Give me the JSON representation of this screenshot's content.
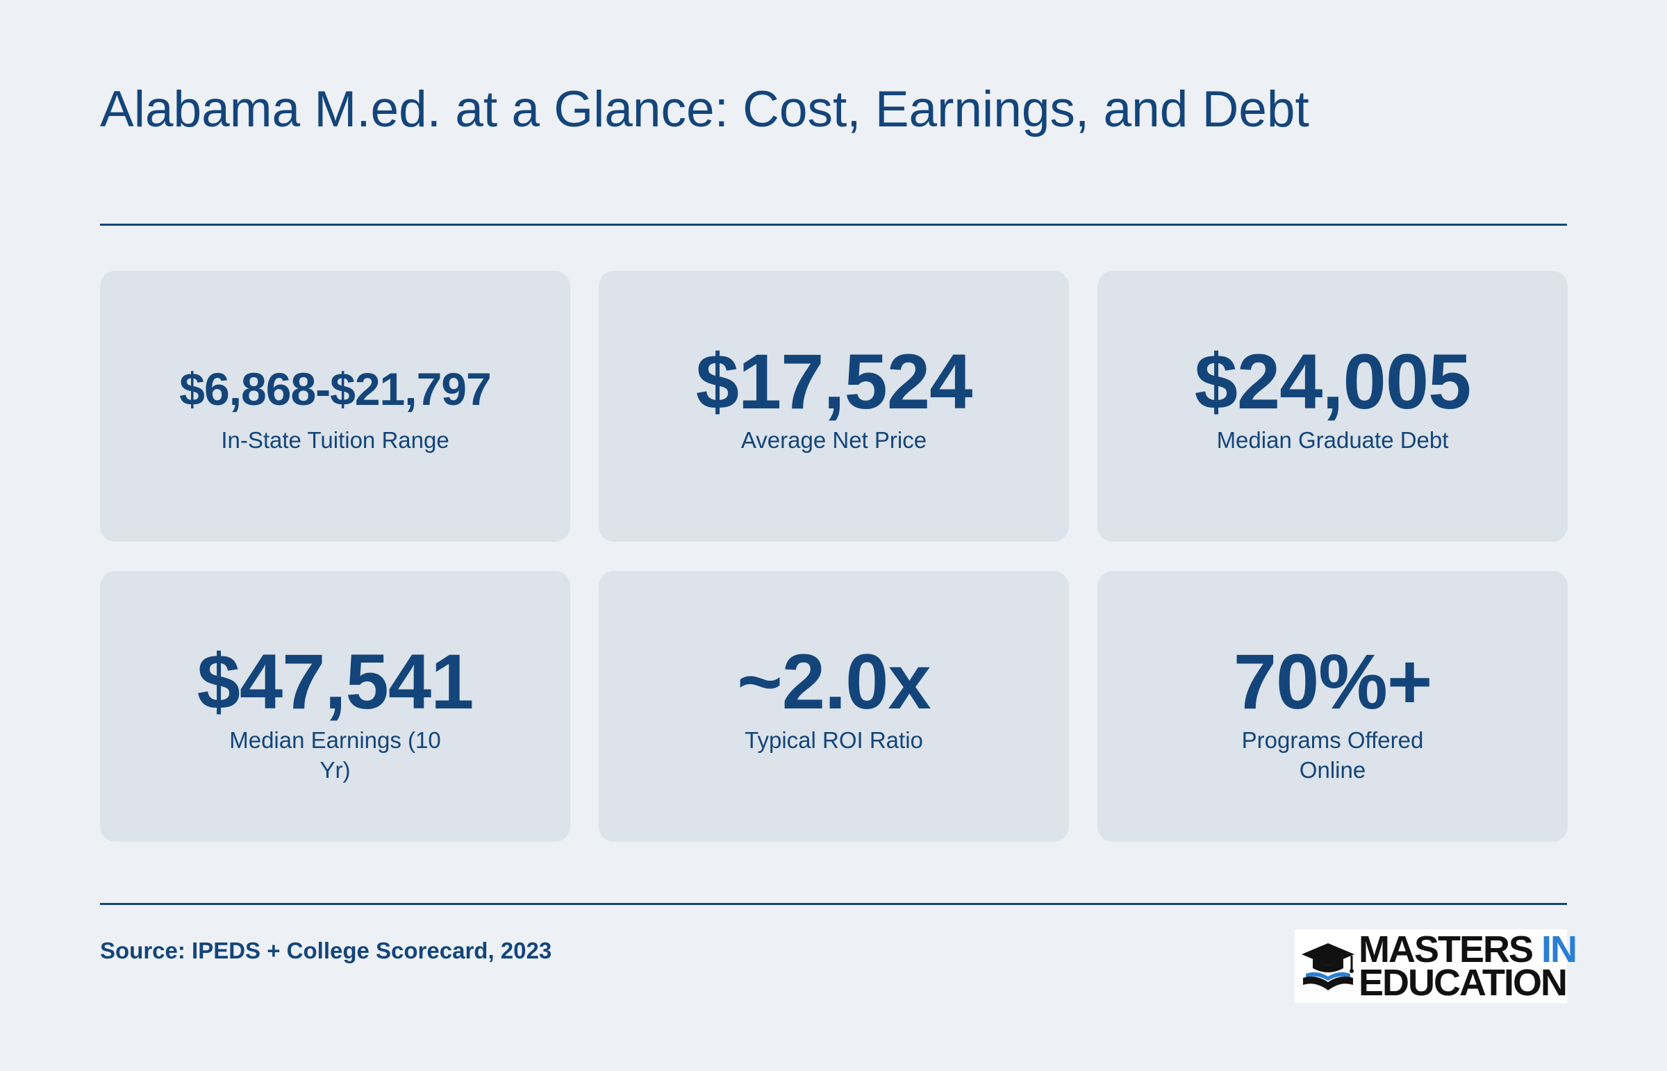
{
  "header": {
    "title": "Alabama M.ed. at a Glance: Cost, Earnings, and Debt"
  },
  "stats": [
    {
      "value": "$6,868-$21,797",
      "label": "In-State Tuition Range"
    },
    {
      "value": "$17,524",
      "label": "Average Net Price"
    },
    {
      "value": "$24,005",
      "label": "Median Graduate Debt"
    },
    {
      "value": "$47,541",
      "label": "Median Earnings (10 Yr)"
    },
    {
      "value": "~2.0x",
      "label": "Typical ROI Ratio"
    },
    {
      "value": "70%+",
      "label": "Programs Offered Online"
    }
  ],
  "footer": {
    "source": "Source: IPEDS + College Scorecard, 2023",
    "logo": {
      "word1": "MASTERS",
      "word2": "IN",
      "word3": "EDUCATION",
      "icon": "graduation-cap-book-icon"
    }
  },
  "colors": {
    "background": "#edf1f6",
    "card": "#dce3ea",
    "primary": "#14457a",
    "logo_accent": "#2a7fd4"
  }
}
